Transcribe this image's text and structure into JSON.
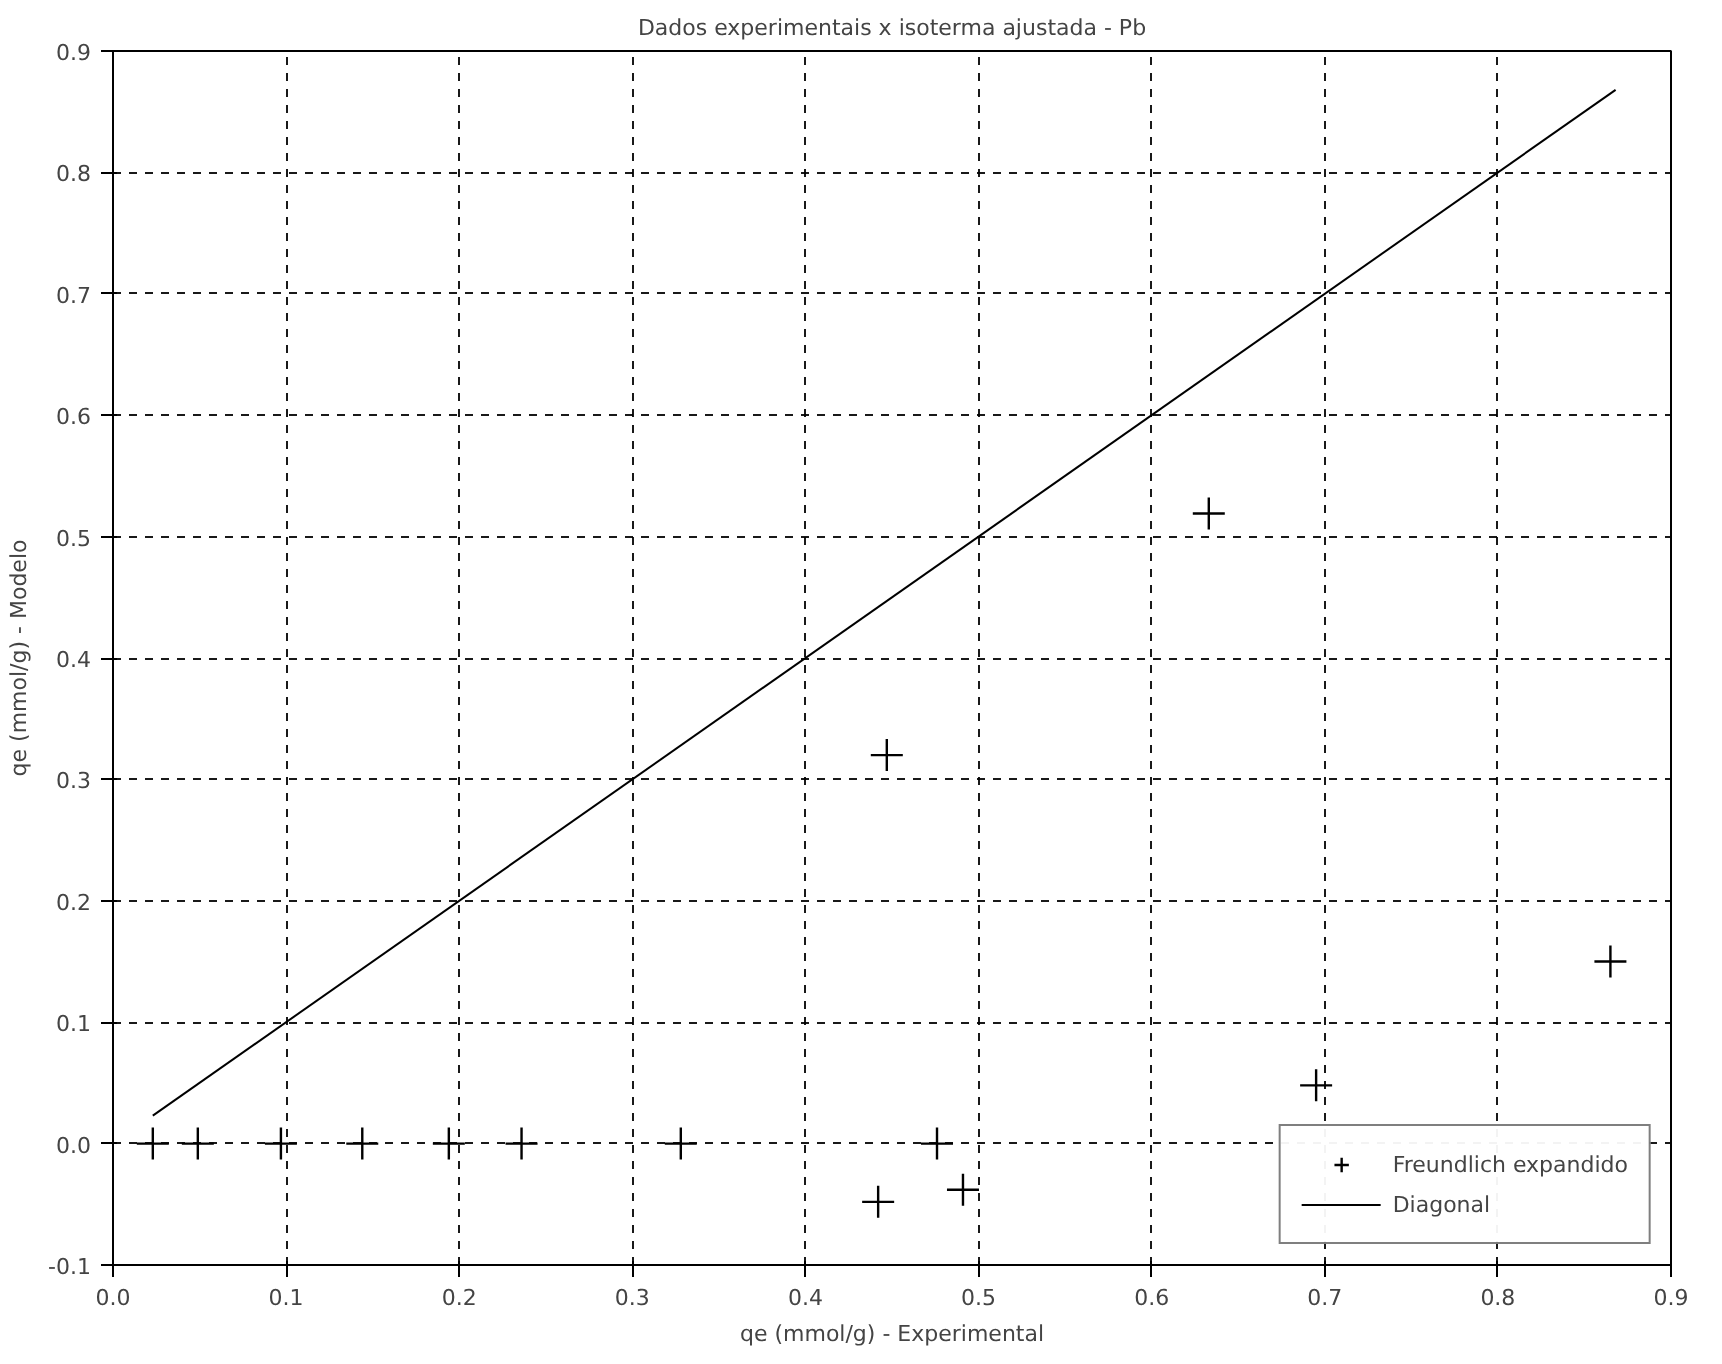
{
  "chart_data": {
    "type": "scatter",
    "title": "Dados experimentais x isoterma ajustada - Pb",
    "xlabel": "qe (mmol/g) - Experimental",
    "ylabel": "qe (mmol/g) - Modelo",
    "xlim": [
      0,
      0.9
    ],
    "ylim": [
      -0.1,
      0.9
    ],
    "xticks": [
      {
        "value": 0,
        "label": "0.0"
      },
      0.1,
      0.2,
      0.3,
      0.4,
      0.5,
      0.6,
      0.7,
      0.8,
      0.9
    ],
    "yticks": [
      -0.1,
      {
        "value": 0,
        "label": "0.0"
      },
      0.1,
      0.2,
      0.3,
      0.4,
      0.5,
      0.6,
      0.7,
      0.8,
      0.9
    ],
    "grid": true,
    "legend": "bottom right",
    "series": [
      {
        "name": "Freundlich expandido",
        "marker": "cross",
        "color": "#000000",
        "x": [
          0.023,
          0.049,
          0.097,
          0.144,
          0.194,
          0.236,
          0.328,
          0.442,
          0.447,
          0.476,
          0.491,
          0.633,
          0.695,
          0.865
        ],
        "values": [
          0,
          0,
          0,
          0,
          0,
          0,
          0,
          -0.048,
          0.32,
          0,
          -0.038,
          0.519,
          0.048,
          0.15
        ]
      },
      {
        "name": "Diagonal",
        "type": "line",
        "color": "#000000",
        "x": [
          0.023,
          0.868
        ],
        "values": [
          0.023,
          0.868
        ]
      }
    ]
  }
}
